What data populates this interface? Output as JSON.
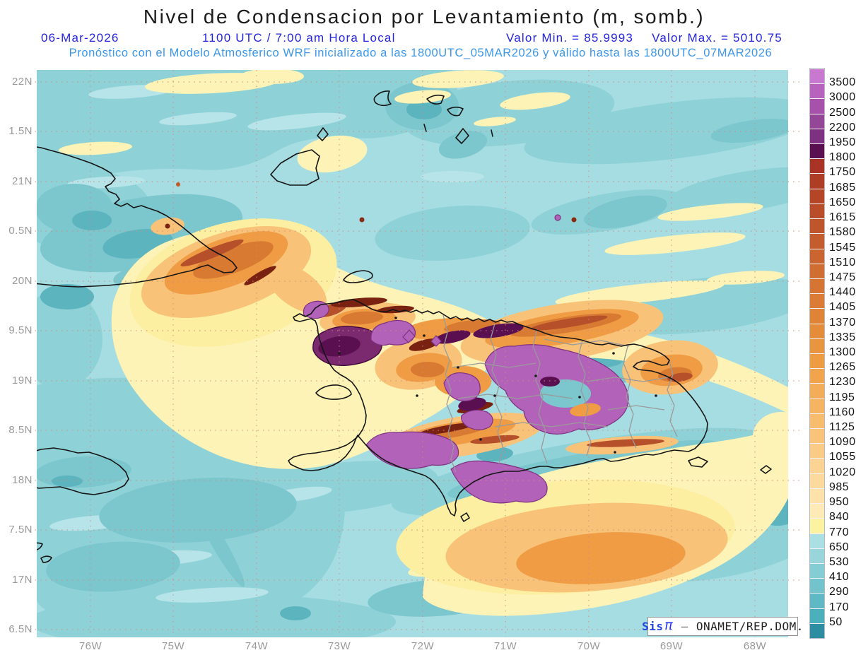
{
  "title": "Nivel de Condensacion por Levantamiento (m, somb.)",
  "header": {
    "date": "06-Mar-2026",
    "time": "1100 UTC / 7:00 am Hora Local",
    "valor_min": "Valor Min. = 85.9993",
    "valor_max": "Valor Max. = 5010.75",
    "forecast": "Pronóstico con el Modelo Atmosferico WRF inicializado a las 1800UTC_05MAR2026 y válido hasta las  1800UTC_07MAR2026"
  },
  "axes": {
    "y_labels": [
      "22N",
      "1.5N",
      "21N",
      "0.5N",
      "20N",
      "9.5N",
      "19N",
      "8.5N",
      "18N",
      "7.5N",
      "17N",
      "6.5N"
    ],
    "x_labels": [
      "76W",
      "75W",
      "74W",
      "73W",
      "72W",
      "71W",
      "70W",
      "69W",
      "68W"
    ]
  },
  "colorbar": {
    "values": [
      3500,
      3000,
      2500,
      2200,
      1950,
      1800,
      1750,
      1685,
      1650,
      1615,
      1580,
      1545,
      1510,
      1475,
      1440,
      1405,
      1370,
      1335,
      1300,
      1265,
      1230,
      1195,
      1160,
      1125,
      1090,
      1055,
      1020,
      985,
      950,
      840,
      770,
      650,
      530,
      410,
      290,
      170,
      50
    ],
    "cell_colors": [
      "#c878ce",
      "#b763bd",
      "#a751ab",
      "#944697",
      "#7e3181",
      "#5a0f50",
      "#a93426",
      "#ae3d25",
      "#b44527",
      "#b94d29",
      "#bf552b",
      "#c45d2d",
      "#ca652f",
      "#d06d31",
      "#d57433",
      "#da7c35",
      "#df8437",
      "#e48c3a",
      "#e9943e",
      "#ee9c42",
      "#f1a44c",
      "#f3ac57",
      "#f5b462",
      "#f7bc6e",
      "#f9c47a",
      "#facb86",
      "#fbd392",
      "#fcda9e",
      "#fde2aa",
      "#fdeab6",
      "#fcf3a2",
      "#aadfe3",
      "#98d6db",
      "#85cdd4",
      "#72c3cc",
      "#5fb9c4",
      "#4cafbc",
      "#2e8ea1"
    ]
  },
  "watermark": {
    "brand": "Sis",
    "pi": "π",
    "separator": "–",
    "org": "ONAMET/REP.DOM."
  },
  "colors": {
    "header_blue": "#2424e0",
    "forecast_blue": "#3b97e9",
    "axis_label_gray": "#9a9a9a",
    "ocean_base": "#a6dde2",
    "grid_dots": "#cf8b7d",
    "coastline": "#151515",
    "admin_border": "#9a9a9a"
  }
}
